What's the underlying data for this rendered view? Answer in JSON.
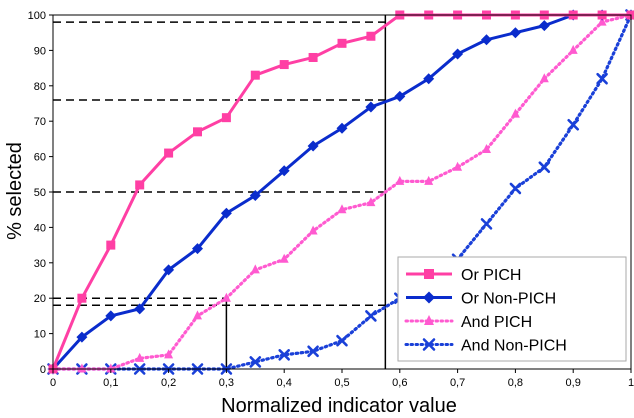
{
  "chart_data": {
    "type": "line",
    "title": "",
    "xlabel": "Normalized indicator value",
    "ylabel": "% selected",
    "xlim": [
      0,
      1
    ],
    "ylim": [
      0,
      100
    ],
    "x_ticks": [
      0,
      0.1,
      0.2,
      0.3,
      0.4,
      0.5,
      0.6,
      0.7,
      0.8,
      0.9,
      1
    ],
    "x_tick_labels": [
      "0",
      "0,1",
      "0,2",
      "0,3",
      "0,4",
      "0,5",
      "0,6",
      "0,7",
      "0,8",
      "0,9",
      "1"
    ],
    "y_ticks": [
      0,
      10,
      20,
      30,
      40,
      50,
      60,
      70,
      80,
      90,
      100
    ],
    "grid": false,
    "legend_position": "bottom-right",
    "x": [
      0,
      0.05,
      0.1,
      0.15,
      0.2,
      0.25,
      0.3,
      0.35,
      0.4,
      0.45,
      0.5,
      0.55,
      0.6,
      0.65,
      0.7,
      0.75,
      0.8,
      0.85,
      0.9,
      0.95,
      1
    ],
    "series": [
      {
        "name": "Or PICH",
        "color": "#ff3fa4",
        "line": "solid",
        "marker": "square",
        "values": [
          0,
          20,
          35,
          52,
          61,
          67,
          71,
          83,
          86,
          88,
          92,
          94,
          100,
          100,
          100,
          100,
          100,
          100,
          100,
          100,
          100
        ]
      },
      {
        "name": "Or Non-PICH",
        "color": "#0a2ccc",
        "line": "solid",
        "marker": "diamond",
        "values": [
          0,
          9,
          15,
          17,
          28,
          34,
          44,
          49,
          56,
          63,
          68,
          74,
          77,
          82,
          89,
          93,
          95,
          97,
          100,
          100,
          100
        ]
      },
      {
        "name": "And PICH",
        "color": "#ff5ad0",
        "line": "dotted",
        "marker": "triangle",
        "values": [
          0,
          0,
          0,
          3,
          4,
          15,
          20,
          28,
          31,
          39,
          45,
          47,
          53,
          53,
          57,
          62,
          72,
          82,
          90,
          98,
          100
        ]
      },
      {
        "name": "And Non-PICH",
        "color": "#1a40d8",
        "line": "dotted",
        "marker": "x",
        "values": [
          0,
          0,
          0,
          0,
          0,
          0,
          0,
          2,
          4,
          5,
          8,
          15,
          20,
          24,
          31,
          41,
          51,
          57,
          69,
          82,
          100
        ]
      }
    ],
    "reference_lines": {
      "dashed_horizontal": [
        {
          "y": 98,
          "x_end": 0.575
        },
        {
          "y": 76,
          "x_end": 0.575
        },
        {
          "y": 50,
          "x_end": 0.575
        },
        {
          "y": 20,
          "x_end": 0.3
        },
        {
          "y": 18,
          "x_end": 0.575
        }
      ],
      "solid_vertical": [
        {
          "x": 0.3,
          "y_end": 20
        },
        {
          "x": 0.575,
          "y_end": 100
        }
      ]
    }
  }
}
